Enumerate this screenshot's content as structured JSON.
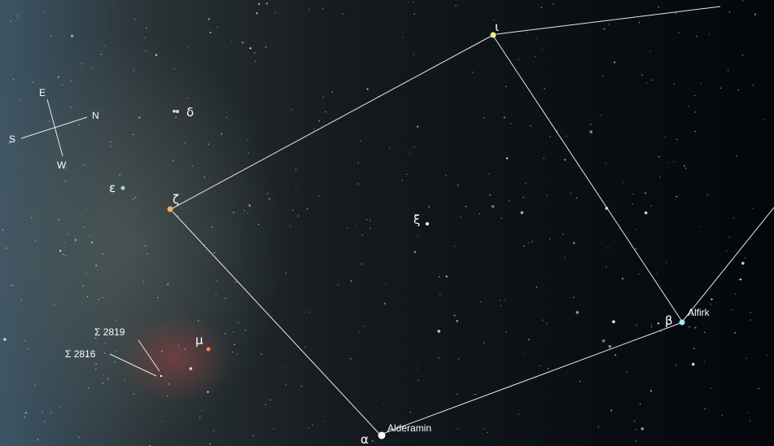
{
  "compass": {
    "east": "E",
    "north": "N",
    "south": "S",
    "west": "W"
  },
  "labels": {
    "delta": "δ",
    "epsilon": "ε",
    "zeta": "ζ",
    "xi": "ξ",
    "iota": "ι",
    "beta": "β",
    "beta_name": "Alfirk",
    "alpha": "α",
    "alpha_name": "Alderamin",
    "mu": "μ",
    "sigma_2819": "Σ 2819",
    "sigma_2816": "Σ 2816"
  }
}
